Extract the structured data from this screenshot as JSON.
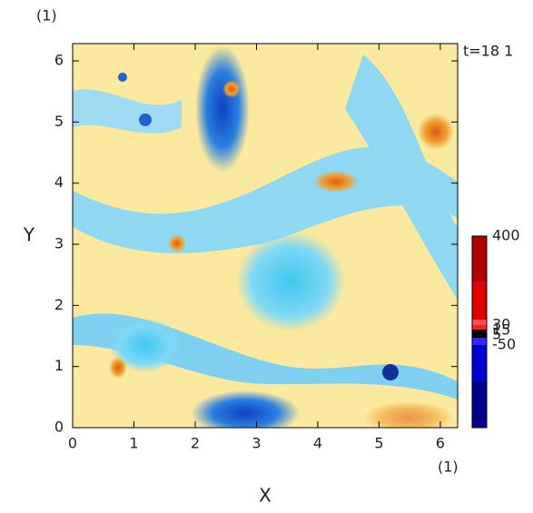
{
  "chart_data": {
    "type": "field",
    "y_unit": "(1)",
    "x_unit": "(1)",
    "time_label": "t=18 1",
    "x_label": "X",
    "y_label": "Y",
    "xlim": [
      0,
      6.283
    ],
    "ylim": [
      0,
      6.283
    ],
    "xticks": [
      0,
      1,
      2,
      3,
      4,
      5,
      6
    ],
    "yticks": [
      0,
      1,
      2,
      3,
      4,
      5,
      6
    ],
    "colorbar_ticks": [
      400,
      30,
      15,
      5,
      -50
    ]
  }
}
